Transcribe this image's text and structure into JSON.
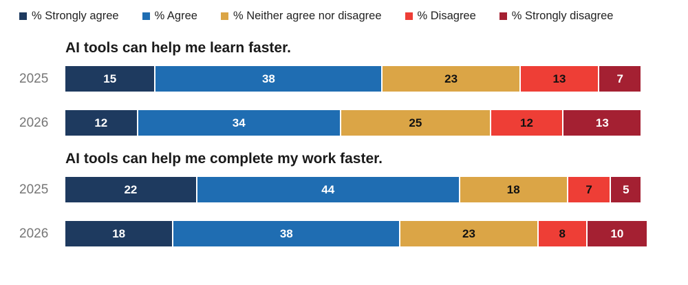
{
  "chart_data": {
    "type": "bar",
    "variant": "horizontal-stacked",
    "title": "",
    "xlabel": "",
    "ylabel": "",
    "xlim": [
      0,
      100
    ],
    "grid": false,
    "legend_position": "top",
    "legend": [
      "% Strongly agree",
      "% Agree",
      "% Neither agree nor disagree",
      "% Disagree",
      "% Strongly disagree"
    ],
    "colors": [
      "#1e3a5f",
      "#1f6db2",
      "#dba546",
      "#ee3e36",
      "#a42032"
    ],
    "value_text_colors": [
      "#ffffff",
      "#ffffff",
      "#111111",
      "#111111",
      "#ffffff"
    ],
    "groups": [
      {
        "title": "AI tools can help me learn faster.",
        "rows": [
          {
            "label": "2025",
            "values": [
              15,
              38,
              23,
              13,
              7
            ]
          },
          {
            "label": "2026",
            "values": [
              12,
              34,
              25,
              12,
              13
            ]
          }
        ]
      },
      {
        "title": "AI tools can help me complete my work faster.",
        "rows": [
          {
            "label": "2025",
            "values": [
              22,
              44,
              18,
              7,
              5
            ]
          },
          {
            "label": "2026",
            "values": [
              18,
              38,
              23,
              8,
              10
            ]
          }
        ]
      }
    ]
  }
}
